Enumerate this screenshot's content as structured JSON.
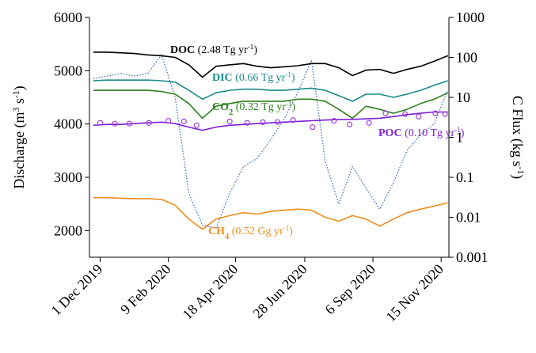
{
  "chart_data": {
    "type": "line",
    "y_label_parts": [
      {
        "text": "Discharge (m"
      },
      {
        "text": "3",
        "style": "sup"
      },
      {
        "text": " s"
      },
      {
        "text": "-1",
        "style": "sup"
      },
      {
        "text": ")"
      }
    ],
    "y2_label_parts": [
      {
        "text": "C Flux (kg s"
      },
      {
        "text": "-1",
        "style": "sup"
      },
      {
        "text": ")"
      }
    ],
    "x": [
      "2019-11-24",
      "2019-12-08",
      "2019-12-22",
      "2020-01-05",
      "2020-01-19",
      "2020-02-02",
      "2020-02-16",
      "2020-03-01",
      "2020-03-15",
      "2020-03-29",
      "2020-04-12",
      "2020-04-26",
      "2020-05-10",
      "2020-05-24",
      "2020-06-07",
      "2020-06-21",
      "2020-07-05",
      "2020-07-19",
      "2020-08-02",
      "2020-08-16",
      "2020-08-30",
      "2020-09-13",
      "2020-09-27",
      "2020-10-11",
      "2020-10-25",
      "2020-11-08",
      "2020-11-22"
    ],
    "xlim": [
      "2019-11-20",
      "2020-11-23"
    ],
    "xticks": [
      {
        "value": "2019-12-01",
        "label": "1 Dec 2019"
      },
      {
        "value": "2020-02-09",
        "label": "9 Feb 2020"
      },
      {
        "value": "2020-04-18",
        "label": "18 Apr 2020"
      },
      {
        "value": "2020-06-28",
        "label": "28 Jun 2020"
      },
      {
        "value": "2020-09-06",
        "label": "6 Sep 2020"
      },
      {
        "value": "2020-11-15",
        "label": "15 Nov 2020"
      }
    ],
    "ylim": [
      1500,
      6000
    ],
    "yticks": [
      2000,
      3000,
      4000,
      5000,
      6000
    ],
    "y2lim": [
      0.001,
      1000
    ],
    "y2ticks": [
      0.001,
      0.01,
      0.1,
      1,
      10,
      100,
      1000
    ],
    "y2_scale": "log",
    "series": [
      {
        "color": "#3a6fc4",
        "dash": "dotted",
        "values": [
          4850,
          4900,
          4950,
          4900,
          4950,
          5300,
          4500,
          2700,
          2100,
          2050,
          2700,
          3200,
          3350,
          3700,
          4100,
          4600,
          5200,
          3300,
          2500,
          3200,
          2800,
          2400,
          2900,
          3500,
          3800,
          4000,
          4650
        ]
      },
      {
        "color": "#000000",
        "axis": "y2",
        "values": [
          135,
          135,
          130,
          125,
          115,
          110,
          100,
          65,
          32,
          60,
          65,
          70,
          60,
          55,
          58,
          62,
          70,
          70,
          55,
          35,
          48,
          50,
          40,
          50,
          60,
          80,
          110
        ],
        "annotation": [
          {
            "text": "DOC",
            "style": "bold"
          },
          {
            "text": " (2.48 Tg yr"
          },
          {
            "text": "-1",
            "style": "sup"
          },
          {
            "text": ")"
          }
        ]
      },
      {
        "color": "#1a8a8a",
        "axis": "y2",
        "values": [
          26,
          27,
          27,
          27,
          27,
          26,
          24,
          15,
          9,
          13,
          15,
          16,
          16,
          15,
          15,
          16,
          17,
          15,
          11,
          8,
          12,
          12,
          10,
          12,
          15,
          20,
          26
        ],
        "annotation": [
          {
            "text": "DIC",
            "style": "bold"
          },
          {
            "text": " (0.66 Tg yr"
          },
          {
            "text": "-1",
            "style": "sup"
          },
          {
            "text": ")"
          }
        ]
      },
      {
        "color": "#2e7d1e",
        "axis": "y2",
        "values": [
          15,
          15,
          15,
          15,
          15,
          14,
          12,
          7,
          3,
          6,
          7,
          8,
          8,
          8,
          8,
          9,
          9,
          8,
          5,
          3,
          6,
          5,
          4,
          5,
          7,
          9,
          13
        ],
        "annotation": [
          {
            "text": "CO",
            "style": "bold"
          },
          {
            "text": "2",
            "style": "sub"
          },
          {
            "text": " (0.32 Tg yr"
          },
          {
            "text": "-1",
            "style": "sup"
          },
          {
            "text": ")"
          }
        ]
      },
      {
        "color": "#7b1fd6",
        "axis": "y2",
        "values": [
          2,
          2.1,
          2.1,
          2.2,
          2.3,
          2.4,
          2.2,
          1.8,
          1.5,
          1.8,
          2,
          2.1,
          2.2,
          2.3,
          2.4,
          2.5,
          2.6,
          2.7,
          2.8,
          2.8,
          2.9,
          3,
          3.3,
          3.7,
          4,
          4.3,
          4.3
        ],
        "annotation": [
          {
            "text": "POC",
            "style": "bold"
          },
          {
            "text": " (0.10 Tg yr"
          },
          {
            "text": "-1",
            "style": "sup"
          },
          {
            "text": ")"
          }
        ]
      },
      {
        "color": "#a040e0",
        "axis": "y2",
        "marker": "circle",
        "x": [
          "2019-12-01",
          "2019-12-16",
          "2019-12-31",
          "2020-01-20",
          "2020-02-09",
          "2020-02-25",
          "2020-03-09",
          "2020-04-12",
          "2020-04-30",
          "2020-05-16",
          "2020-05-31",
          "2020-06-16",
          "2020-07-06",
          "2020-07-28",
          "2020-08-13",
          "2020-09-02",
          "2020-09-19",
          "2020-10-09",
          "2020-10-23",
          "2020-11-09",
          "2020-11-19"
        ],
        "values": [
          2.3,
          2.2,
          2.2,
          2.3,
          2.6,
          2.5,
          2.0,
          2.5,
          2.3,
          2.4,
          2.4,
          2.7,
          1.8,
          2.6,
          2.1,
          2.3,
          4.0,
          3.8,
          3.3,
          4.0,
          3.8
        ]
      },
      {
        "color": "#f08c1e",
        "axis": "y2",
        "values": [
          0.031,
          0.031,
          0.03,
          0.029,
          0.029,
          0.028,
          0.02,
          0.009,
          0.005,
          0.009,
          0.011,
          0.013,
          0.012,
          0.014,
          0.015,
          0.016,
          0.015,
          0.01,
          0.008,
          0.011,
          0.009,
          0.006,
          0.009,
          0.013,
          0.016,
          0.019,
          0.023
        ],
        "annotation": [
          {
            "text": "CH",
            "style": "bold"
          },
          {
            "text": "4",
            "style": "sub"
          },
          {
            "text": " (0.52 Gg yr"
          },
          {
            "text": "-1",
            "style": "sup"
          },
          {
            "text": ")"
          }
        ]
      }
    ]
  }
}
